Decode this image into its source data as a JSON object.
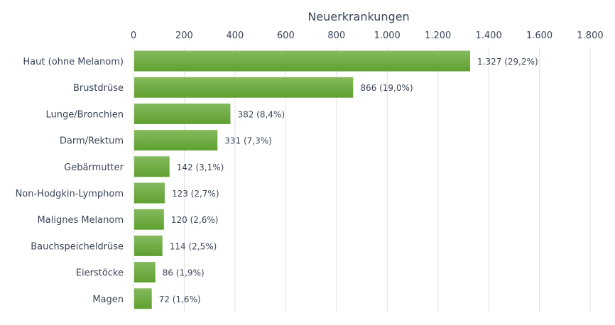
{
  "chart_data": {
    "type": "bar",
    "orientation": "horizontal",
    "title": "Neuerkrankungen",
    "xlabel": "Neuerkrankungen",
    "ylabel": "",
    "xlim": [
      0,
      1800
    ],
    "x_ticks": [
      "0",
      "200",
      "400",
      "600",
      "800",
      "1.000",
      "1.200",
      "1.400",
      "1.600",
      "1.800"
    ],
    "x_tick_values": [
      0,
      200,
      400,
      600,
      800,
      1000,
      1200,
      1400,
      1600,
      1800
    ],
    "axis_position": "top",
    "grid": true,
    "categories": [
      "Haut (ohne Melanom)",
      "Brustdrüse",
      "Lunge/Bronchien",
      "Darm/Rektum",
      "Gebärmutter",
      "Non-Hodgkin-Lymphom",
      "Malignes Melanom",
      "Bauchspeicheldrüse",
      "Eierstöcke",
      "Magen"
    ],
    "values": [
      1327,
      866,
      382,
      331,
      142,
      123,
      120,
      114,
      86,
      72
    ],
    "data_labels": [
      "1.327 (29,2%)",
      "866 (19,0%)",
      "382 (8,4%)",
      "331 (7,3%)",
      "142 (3,1%)",
      "123 (2,7%)",
      "120 (2,6%)",
      "114 (2,5%)",
      "86 (1,9%)",
      "72 (1,6%)"
    ],
    "colors": {
      "bar_top": "#84ba5e",
      "bar_bottom": "#5fa030",
      "grid": "#dde2ea",
      "text": "#3a4658"
    }
  }
}
